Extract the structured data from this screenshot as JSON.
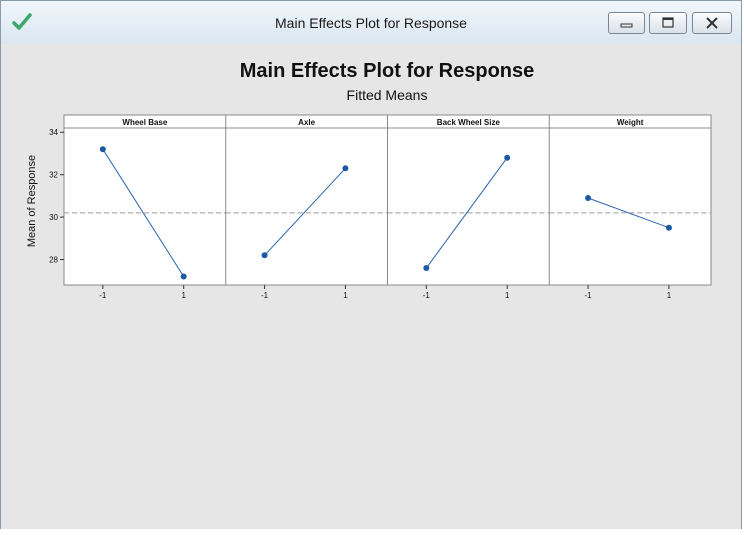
{
  "window": {
    "title": "Main Effects Plot for Response"
  },
  "colors": {
    "line": "#2a62a8",
    "marker": "#1c5aa5",
    "reference": "#9b9b9b",
    "header_bg": "#ffffff",
    "frame": "#888888",
    "background": "#e6e6e6"
  },
  "icons": {
    "app": "checkmark-icon",
    "minimize": "minimize-icon",
    "maximize": "maximize-icon",
    "close": "close-icon"
  },
  "chart_data": {
    "type": "line",
    "title": "Main Effects Plot for Response",
    "subtitle": "Fitted Means",
    "ylabel": "Mean of Response",
    "ylim": [
      26.8,
      34.2
    ],
    "yticks": [
      28,
      30,
      32,
      34
    ],
    "reference_line": 30.2,
    "x": [
      "-1",
      "1"
    ],
    "panels": [
      {
        "name": "Wheel Base",
        "values": [
          33.2,
          27.2
        ]
      },
      {
        "name": "Axle",
        "values": [
          28.2,
          32.3
        ]
      },
      {
        "name": "Back Wheel Size",
        "values": [
          27.6,
          32.8
        ]
      },
      {
        "name": "Weight",
        "values": [
          30.9,
          29.5
        ]
      }
    ],
    "grid": false
  }
}
